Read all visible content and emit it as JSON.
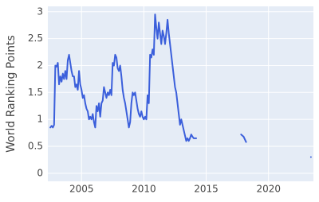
{
  "chart_data": {
    "type": "line",
    "y_label": "World Ranking Points",
    "x": [
      2002.5,
      2002.6,
      2002.7,
      2002.8,
      2002.9,
      2003.0,
      2003.1,
      2003.2,
      2003.3,
      2003.4,
      2003.5,
      2003.6,
      2003.7,
      2003.8,
      2003.9,
      2004.0,
      2004.1,
      2004.2,
      2004.3,
      2004.4,
      2004.5,
      2004.6,
      2004.7,
      2004.8,
      2004.9,
      2005.0,
      2005.1,
      2005.2,
      2005.3,
      2005.4,
      2005.5,
      2005.6,
      2005.7,
      2005.8,
      2005.9,
      2006.0,
      2006.1,
      2006.2,
      2006.3,
      2006.4,
      2006.5,
      2006.6,
      2006.7,
      2006.8,
      2006.9,
      2007.0,
      2007.1,
      2007.2,
      2007.3,
      2007.4,
      2007.5,
      2007.6,
      2007.7,
      2007.8,
      2007.9,
      2008.0,
      2008.1,
      2008.2,
      2008.3,
      2008.4,
      2008.5,
      2008.6,
      2008.7,
      2008.8,
      2008.9,
      2009.0,
      2009.1,
      2009.2,
      2009.3,
      2009.4,
      2009.5,
      2009.6,
      2009.7,
      2009.8,
      2009.9,
      2010.0,
      2010.1,
      2010.2,
      2010.3,
      2010.4,
      2010.5,
      2010.6,
      2010.7,
      2010.8,
      2010.9,
      2011.0,
      2011.1,
      2011.2,
      2011.3,
      2011.4,
      2011.5,
      2011.6,
      2011.7,
      2011.8,
      2011.9,
      2012.0,
      2012.1,
      2012.2,
      2012.3,
      2012.4,
      2012.5,
      2012.6,
      2012.7,
      2012.8,
      2012.9,
      2013.0,
      2013.1,
      2013.2,
      2013.3,
      2013.4,
      2013.5,
      2013.6,
      2013.7,
      2013.8,
      2013.9,
      2014.0,
      2014.2,
      2016.0,
      2017.8,
      2017.9,
      2018.0,
      2018.1,
      2018.2,
      2020.0,
      2023.4
    ],
    "series": [
      {
        "name": "World Ranking Points",
        "color": "#3b5fdb",
        "values": [
          0.85,
          0.88,
          0.85,
          0.9,
          2.0,
          1.98,
          2.05,
          1.65,
          1.8,
          1.7,
          1.85,
          1.75,
          1.9,
          1.75,
          2.1,
          2.2,
          2.05,
          1.9,
          1.8,
          1.8,
          1.6,
          1.65,
          1.55,
          1.9,
          1.65,
          1.55,
          1.4,
          1.45,
          1.3,
          1.2,
          1.15,
          1.0,
          1.05,
          1.0,
          1.1,
          0.95,
          0.85,
          1.25,
          1.15,
          1.3,
          1.05,
          1.3,
          1.35,
          1.6,
          1.5,
          1.4,
          1.5,
          1.45,
          1.55,
          1.45,
          2.05,
          2.0,
          2.2,
          2.15,
          1.95,
          1.9,
          2.0,
          1.8,
          1.55,
          1.4,
          1.3,
          1.15,
          1.0,
          0.85,
          0.95,
          1.3,
          1.5,
          1.45,
          1.5,
          1.35,
          1.2,
          1.1,
          1.05,
          1.15,
          1.05,
          1.0,
          1.05,
          1.0,
          1.45,
          1.3,
          2.2,
          2.15,
          2.3,
          2.2,
          2.95,
          2.7,
          2.5,
          2.8,
          2.6,
          2.4,
          2.65,
          2.55,
          2.4,
          2.6,
          2.85,
          2.6,
          2.4,
          2.2,
          2.0,
          1.8,
          1.6,
          1.5,
          1.3,
          1.1,
          0.9,
          1.0,
          0.9,
          0.8,
          0.7,
          0.6,
          0.65,
          0.6,
          0.65,
          0.72,
          0.68,
          0.65,
          0.65,
          null,
          0.72,
          0.7,
          0.68,
          0.63,
          0.58,
          null,
          0.3
        ]
      }
    ],
    "xlim": [
      2002.3,
      2023.6
    ],
    "xticks": [
      2005,
      2010,
      2015,
      2020
    ],
    "ylim": [
      -0.15,
      3.1
    ],
    "yticks": [
      0,
      0.5,
      1,
      1.5,
      2,
      2.5,
      3
    ],
    "grid": true
  }
}
